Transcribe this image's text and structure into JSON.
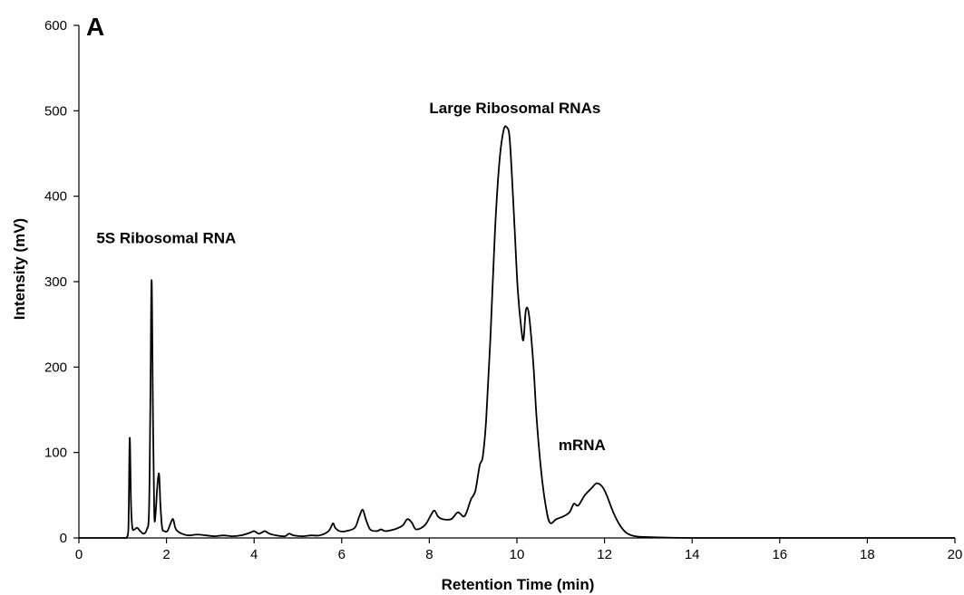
{
  "chart_data": {
    "type": "line",
    "panel_label": "A",
    "xlabel": "Retention Time (min)",
    "ylabel": "Intensity (mV)",
    "xlim": [
      0,
      20
    ],
    "ylim": [
      0,
      600
    ],
    "x_ticks": [
      "0",
      "2",
      "4",
      "6",
      "8",
      "10",
      "12",
      "14",
      "16",
      "18",
      "20"
    ],
    "y_ticks": [
      "0",
      "100",
      "200",
      "300",
      "400",
      "500",
      "600"
    ],
    "grid": false,
    "legend": "none",
    "line_color": "#000000",
    "annotations": [
      {
        "text": "5S Ribosomal RNA",
        "x": 0.4,
        "y": 345
      },
      {
        "text": "Large Ribosomal RNAs",
        "x": 8.0,
        "y": 497
      },
      {
        "text": "mRNA",
        "x": 10.95,
        "y": 103
      }
    ],
    "series": [
      {
        "x": [
          0,
          1.0,
          1.08,
          1.13,
          1.16,
          1.19,
          1.22,
          1.27,
          1.33,
          1.4,
          1.48,
          1.55,
          1.6,
          1.63,
          1.66,
          1.69,
          1.72,
          1.75,
          1.79,
          1.83,
          1.86,
          1.9,
          1.95,
          2.02,
          2.1,
          2.15,
          2.2,
          2.25,
          2.35,
          2.5,
          2.7,
          2.9,
          3.1,
          3.3,
          3.5,
          3.7,
          3.9,
          4.0,
          4.1,
          4.2,
          4.25,
          4.35,
          4.5,
          4.7,
          4.8,
          4.9,
          5.1,
          5.3,
          5.5,
          5.7,
          5.8,
          5.85,
          5.95,
          6.1,
          6.3,
          6.4,
          6.48,
          6.55,
          6.65,
          6.8,
          6.9,
          7.0,
          7.2,
          7.3,
          7.4,
          7.5,
          7.6,
          7.7,
          7.9,
          8.05,
          8.12,
          8.2,
          8.3,
          8.5,
          8.65,
          8.78,
          8.85,
          8.95,
          9.05,
          9.15,
          9.22,
          9.3,
          9.4,
          9.5,
          9.6,
          9.7,
          9.78,
          9.83,
          9.88,
          9.95,
          10.02,
          10.1,
          10.15,
          10.2,
          10.25,
          10.3,
          10.38,
          10.45,
          10.55,
          10.65,
          10.75,
          10.9,
          11.05,
          11.2,
          11.3,
          11.4,
          11.55,
          11.7,
          11.82,
          11.95,
          12.05,
          12.2,
          12.35,
          12.5,
          12.7,
          13.0,
          14,
          16,
          18,
          20
        ],
        "y": [
          0,
          0,
          0,
          10,
          117,
          40,
          12,
          10,
          12,
          8,
          5,
          10,
          30,
          150,
          302,
          150,
          30,
          28,
          60,
          75,
          40,
          12,
          8,
          8,
          18,
          22,
          12,
          8,
          5,
          3,
          4,
          3,
          2,
          3,
          2,
          3,
          6,
          8,
          5,
          7,
          8,
          5,
          3,
          2,
          5,
          3,
          2,
          3,
          3,
          8,
          17,
          12,
          8,
          8,
          12,
          25,
          33,
          22,
          10,
          8,
          10,
          8,
          10,
          12,
          15,
          22,
          18,
          10,
          15,
          28,
          32,
          25,
          22,
          22,
          30,
          25,
          30,
          45,
          55,
          85,
          95,
          140,
          240,
          360,
          440,
          478,
          480,
          470,
          430,
          360,
          290,
          245,
          232,
          265,
          268,
          250,
          200,
          140,
          80,
          40,
          18,
          22,
          25,
          30,
          40,
          38,
          50,
          58,
          64,
          60,
          50,
          30,
          15,
          6,
          2,
          1,
          0,
          0,
          0,
          0
        ]
      }
    ]
  }
}
